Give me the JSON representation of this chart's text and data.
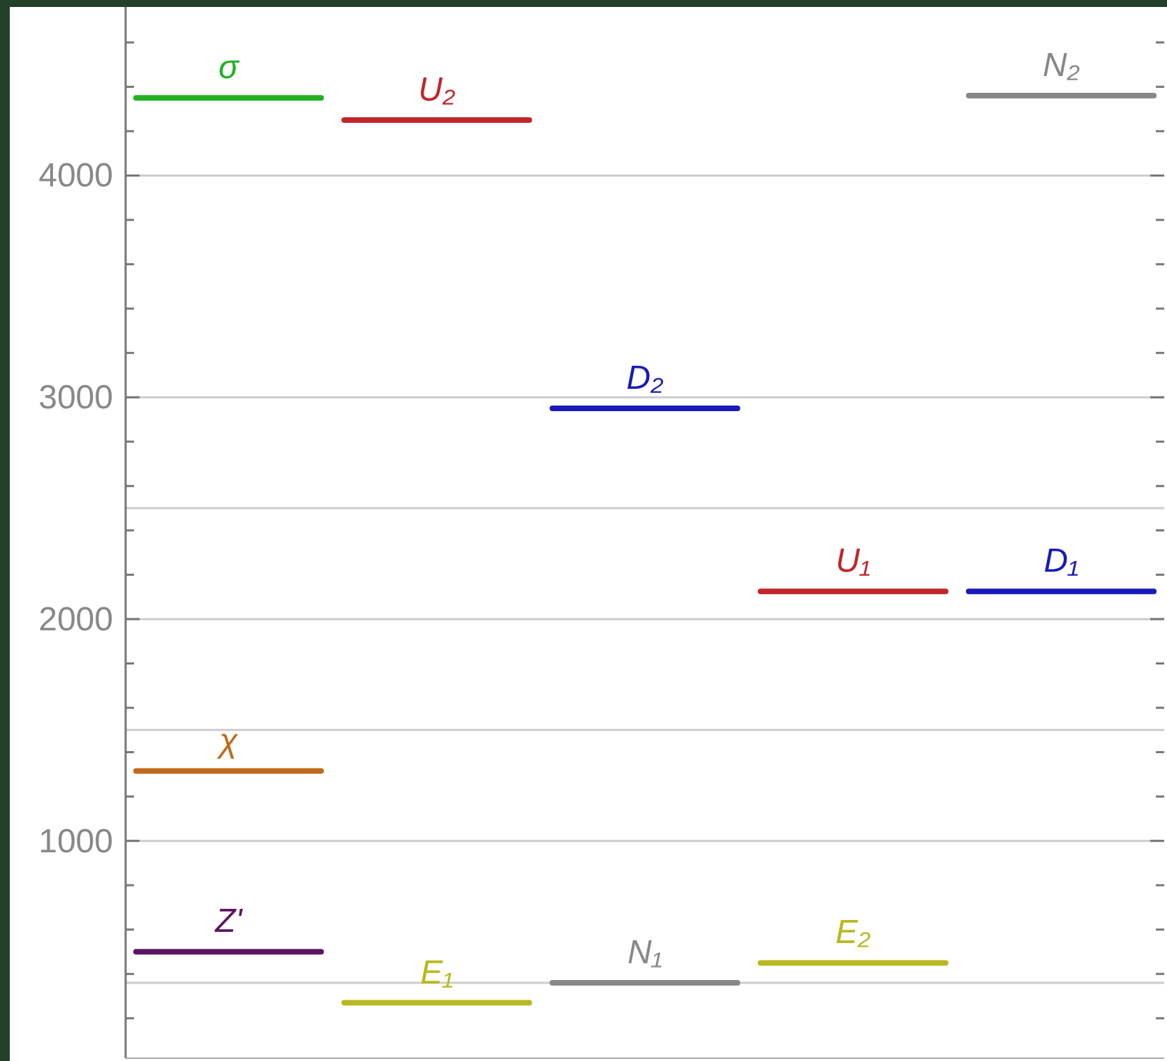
{
  "chart_data": {
    "type": "line",
    "categories": [
      null,
      null,
      null,
      null,
      null,
      null,
      null,
      null,
      null,
      null,
      null,
      null,
      null,
      null,
      null,
      null,
      null,
      null,
      null,
      null,
      null,
      null,
      null,
      null,
      null,
      null,
      null,
      null,
      null,
      null,
      null,
      null,
      null,
      null,
      null,
      null,
      null,
      null,
      null,
      null,
      null,
      null,
      null,
      null,
      null
    ],
    "series": [
      {
        "name": "σ",
        "color": "#22b022",
        "values": [
          4350,
          4350,
          4350,
          4350,
          4350,
          4350,
          4350,
          4350,
          4350,
          null,
          null,
          null,
          null,
          null,
          null,
          null,
          null,
          null,
          null,
          null,
          null,
          null,
          null,
          null,
          null,
          null,
          null,
          null,
          null,
          null,
          null,
          null,
          null,
          null,
          null,
          null,
          null,
          null,
          null,
          null,
          null,
          null,
          null,
          null,
          null
        ]
      },
      {
        "name": "U₂",
        "color": "#c0262a",
        "values": [
          null,
          null,
          null,
          null,
          null,
          null,
          null,
          null,
          null,
          4250,
          4250,
          4250,
          4250,
          4250,
          4250,
          4250,
          4250,
          4250,
          null,
          null,
          null,
          null,
          null,
          null,
          null,
          null,
          null,
          null,
          null,
          null,
          null,
          null,
          null,
          null,
          null,
          null,
          null,
          null,
          null,
          null,
          null,
          null,
          null,
          null,
          null
        ]
      },
      {
        "name": "N₂",
        "color": "#888888",
        "values": [
          null,
          null,
          null,
          null,
          null,
          null,
          null,
          null,
          null,
          null,
          null,
          null,
          null,
          null,
          null,
          null,
          null,
          null,
          null,
          null,
          null,
          null,
          null,
          null,
          null,
          null,
          null,
          null,
          null,
          null,
          null,
          null,
          null,
          null,
          null,
          null,
          4360,
          4360,
          4360,
          4360,
          4360,
          4360,
          4360,
          4360,
          4360
        ]
      },
      {
        "name": "D₂",
        "color": "#1a1ab8",
        "values": [
          null,
          null,
          null,
          null,
          null,
          null,
          null,
          null,
          null,
          null,
          null,
          null,
          null,
          null,
          null,
          null,
          null,
          null,
          2950,
          2950,
          2950,
          2950,
          2950,
          2950,
          2950,
          2950,
          2950,
          null,
          null,
          null,
          null,
          null,
          null,
          null,
          null,
          null,
          null,
          null,
          null,
          null,
          null,
          null,
          null,
          null,
          null
        ]
      },
      {
        "name": "U₁",
        "color": "#c0262a",
        "values": [
          null,
          null,
          null,
          null,
          null,
          null,
          null,
          null,
          null,
          null,
          null,
          null,
          null,
          null,
          null,
          null,
          null,
          null,
          null,
          null,
          null,
          null,
          null,
          null,
          null,
          null,
          null,
          2125,
          2125,
          2125,
          2125,
          2125,
          2125,
          2125,
          2125,
          2125,
          null,
          null,
          null,
          null,
          null,
          null,
          null,
          null,
          null
        ]
      },
      {
        "name": "D₁",
        "color": "#1a1ab8",
        "values": [
          null,
          null,
          null,
          null,
          null,
          null,
          null,
          null,
          null,
          null,
          null,
          null,
          null,
          null,
          null,
          null,
          null,
          null,
          null,
          null,
          null,
          null,
          null,
          null,
          null,
          null,
          null,
          null,
          null,
          null,
          null,
          null,
          null,
          null,
          null,
          null,
          2125,
          2125,
          2125,
          2125,
          2125,
          2125,
          2125,
          2125,
          2125
        ]
      },
      {
        "name": "χ",
        "color": "#c06a1e",
        "values": [
          1315,
          1315,
          1315,
          1315,
          1315,
          1315,
          1315,
          1315,
          1315,
          null,
          null,
          null,
          null,
          null,
          null,
          null,
          null,
          null,
          null,
          null,
          null,
          null,
          null,
          null,
          null,
          null,
          null,
          null,
          null,
          null,
          null,
          null,
          null,
          null,
          null,
          null,
          null,
          null,
          null,
          null,
          null,
          null,
          null,
          null,
          null
        ]
      },
      {
        "name": "Z'",
        "color": "#5c1460",
        "values": [
          500,
          500,
          500,
          500,
          500,
          500,
          500,
          500,
          500,
          null,
          null,
          null,
          null,
          null,
          null,
          null,
          null,
          null,
          null,
          null,
          null,
          null,
          null,
          null,
          null,
          null,
          null,
          null,
          null,
          null,
          null,
          null,
          null,
          null,
          null,
          null,
          null,
          null,
          null,
          null,
          null,
          null,
          null,
          null,
          null
        ]
      },
      {
        "name": "E₁",
        "color": "#b8b820",
        "values": [
          null,
          null,
          null,
          null,
          null,
          null,
          null,
          null,
          null,
          270,
          270,
          270,
          270,
          270,
          270,
          270,
          270,
          270,
          null,
          null,
          null,
          null,
          null,
          null,
          null,
          null,
          null,
          null,
          null,
          null,
          null,
          null,
          null,
          null,
          null,
          null,
          null,
          null,
          null,
          null,
          null,
          null,
          null,
          null,
          null
        ]
      },
      {
        "name": "N₁",
        "color": "#888888",
        "values": [
          null,
          null,
          null,
          null,
          null,
          null,
          null,
          null,
          null,
          null,
          null,
          null,
          null,
          null,
          null,
          null,
          null,
          null,
          360,
          360,
          360,
          360,
          360,
          360,
          360,
          360,
          360,
          null,
          null,
          null,
          null,
          null,
          null,
          null,
          null,
          null,
          null,
          null,
          null,
          null,
          null,
          null,
          null,
          null,
          null
        ]
      },
      {
        "name": "E₂",
        "color": "#b8b820",
        "values": [
          null,
          null,
          null,
          null,
          null,
          null,
          null,
          null,
          null,
          null,
          null,
          null,
          null,
          null,
          null,
          null,
          null,
          null,
          null,
          null,
          null,
          null,
          null,
          null,
          null,
          null,
          null,
          450,
          450,
          450,
          450,
          450,
          450,
          450,
          450,
          450,
          null,
          null,
          null,
          null,
          null,
          null,
          null,
          null,
          null
        ]
      }
    ],
    "ylim": [
      20,
      4760
    ],
    "yticks": [
      {
        "value": 200,
        "label": null
      },
      {
        "value": 400,
        "label": null
      },
      {
        "value": 600,
        "label": null
      },
      {
        "value": 800,
        "label": null
      },
      1000,
      {
        "value": 1200,
        "label": null
      },
      {
        "value": 1400,
        "label": null
      },
      {
        "value": 1600,
        "label": null
      },
      {
        "value": 1800,
        "label": null
      },
      2000,
      {
        "value": 2200,
        "label": null
      },
      {
        "value": 2400,
        "label": null
      },
      {
        "value": 2600,
        "label": null
      },
      {
        "value": 2800,
        "label": null
      },
      3000,
      {
        "value": 3200,
        "label": null
      },
      {
        "value": 3400,
        "label": null
      },
      {
        "value": 3600,
        "label": null
      },
      {
        "value": 3800,
        "label": null
      },
      4000,
      {
        "value": 4200,
        "label": null
      },
      {
        "value": 4400,
        "label": null
      },
      {
        "value": 4600,
        "label": null
      }
    ],
    "grid": "y",
    "ref_lines": [
      {
        "axis": "y",
        "value": 2500,
        "color": "#cccccc"
      },
      {
        "axis": "y",
        "value": 1500,
        "color": "#cccccc"
      },
      {
        "axis": "y",
        "value": 360,
        "color": "#cccccc"
      }
    ],
    "tick_labels": "y"
  }
}
